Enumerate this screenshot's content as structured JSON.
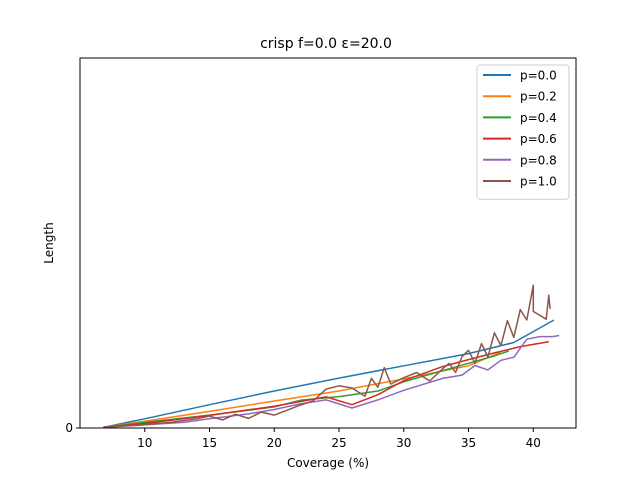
{
  "chart_data": {
    "type": "line",
    "title": "crisp f=0.0 ε=20.0",
    "xlabel": "Coverage (%)",
    "ylabel": "Length",
    "xlim": [
      5.0,
      43.3
    ],
    "ylim": [
      0,
      100
    ],
    "xticks": [
      10,
      15,
      20,
      25,
      30,
      35,
      40
    ],
    "yticks": [
      0
    ],
    "legend_position": "top-right",
    "series": [
      {
        "name": "p=0.0",
        "color": "#1f77b4",
        "points": [
          [
            6.8,
            0.2
          ],
          [
            10,
            2.5
          ],
          [
            15,
            6.3
          ],
          [
            20,
            10.0
          ],
          [
            25,
            13.5
          ],
          [
            30,
            16.8
          ],
          [
            35,
            20.1
          ],
          [
            38.5,
            23.1
          ],
          [
            41.6,
            29.2
          ]
        ]
      },
      {
        "name": "p=0.2",
        "color": "#ff7f0e",
        "points": [
          [
            6.8,
            0.2
          ],
          [
            10,
            1.8
          ],
          [
            15,
            4.5
          ],
          [
            20,
            7.3
          ],
          [
            25,
            10.0
          ],
          [
            30,
            13.3
          ],
          [
            35,
            16.8
          ],
          [
            37.5,
            20.5
          ]
        ]
      },
      {
        "name": "p=0.4",
        "color": "#2ca02c",
        "points": [
          [
            6.8,
            0.2
          ],
          [
            10,
            1.5
          ],
          [
            15,
            3.5
          ],
          [
            20,
            5.7
          ],
          [
            22,
            7.5
          ],
          [
            25,
            8.5
          ],
          [
            28,
            10.0
          ],
          [
            30,
            12.5
          ],
          [
            33,
            15.5
          ],
          [
            35,
            17.5
          ],
          [
            37,
            19.5
          ],
          [
            38.1,
            20.8
          ]
        ]
      },
      {
        "name": "p=0.6",
        "color": "#d62728",
        "points": [
          [
            6.8,
            0.2
          ],
          [
            10,
            1.2
          ],
          [
            15,
            3.4
          ],
          [
            20,
            5.9
          ],
          [
            24,
            8.4
          ],
          [
            26,
            6.3
          ],
          [
            28,
            9.0
          ],
          [
            30,
            12.8
          ],
          [
            33,
            16.6
          ],
          [
            35,
            18.5
          ],
          [
            37,
            20.3
          ],
          [
            39,
            22.0
          ],
          [
            41.2,
            23.3
          ]
        ]
      },
      {
        "name": "p=0.8",
        "color": "#9467bd",
        "points": [
          [
            6.8,
            0.2
          ],
          [
            10,
            0.9
          ],
          [
            13,
            1.5
          ],
          [
            15,
            2.5
          ],
          [
            18,
            3.8
          ],
          [
            20,
            5.0
          ],
          [
            22,
            6.5
          ],
          [
            24,
            7.6
          ],
          [
            26,
            5.4
          ],
          [
            28,
            7.6
          ],
          [
            30,
            10.2
          ],
          [
            33,
            13.4
          ],
          [
            34.5,
            14.3
          ],
          [
            35.5,
            16.9
          ],
          [
            36.5,
            15.7
          ],
          [
            37.5,
            18.3
          ],
          [
            38.5,
            19.1
          ],
          [
            39.5,
            24.0
          ],
          [
            40.5,
            24.7
          ],
          [
            41.5,
            24.7
          ],
          [
            42,
            25.0
          ]
        ]
      },
      {
        "name": "p=1.0",
        "color": "#8c564b",
        "points": [
          [
            6.8,
            0.2
          ],
          [
            10,
            0.9
          ],
          [
            12,
            1.5
          ],
          [
            14,
            2.5
          ],
          [
            15,
            3.2
          ],
          [
            16,
            2.2
          ],
          [
            17,
            3.7
          ],
          [
            18,
            2.6
          ],
          [
            19,
            4.3
          ],
          [
            20,
            3.5
          ],
          [
            21,
            4.8
          ],
          [
            22,
            6.2
          ],
          [
            23,
            7.3
          ],
          [
            24,
            10.5
          ],
          [
            25,
            11.4
          ],
          [
            26,
            10.8
          ],
          [
            27,
            8.6
          ],
          [
            27.5,
            13.4
          ],
          [
            28,
            11.0
          ],
          [
            28.5,
            16.3
          ],
          [
            29,
            11.9
          ],
          [
            30,
            13.6
          ],
          [
            31,
            15.0
          ],
          [
            32,
            12.7
          ],
          [
            33,
            16.0
          ],
          [
            33.5,
            17.5
          ],
          [
            34,
            15.0
          ],
          [
            34.5,
            19.3
          ],
          [
            35,
            21.0
          ],
          [
            35.5,
            17.5
          ],
          [
            36,
            22.8
          ],
          [
            36.5,
            19.2
          ],
          [
            37,
            25.7
          ],
          [
            37.5,
            22.3
          ],
          [
            38,
            29.0
          ],
          [
            38.5,
            24.5
          ],
          [
            39,
            32.0
          ],
          [
            39.5,
            29.2
          ],
          [
            40,
            38.6
          ],
          [
            40,
            31.5
          ],
          [
            41,
            29.4
          ],
          [
            41.2,
            35.9
          ],
          [
            41.3,
            32.2
          ]
        ]
      }
    ]
  }
}
